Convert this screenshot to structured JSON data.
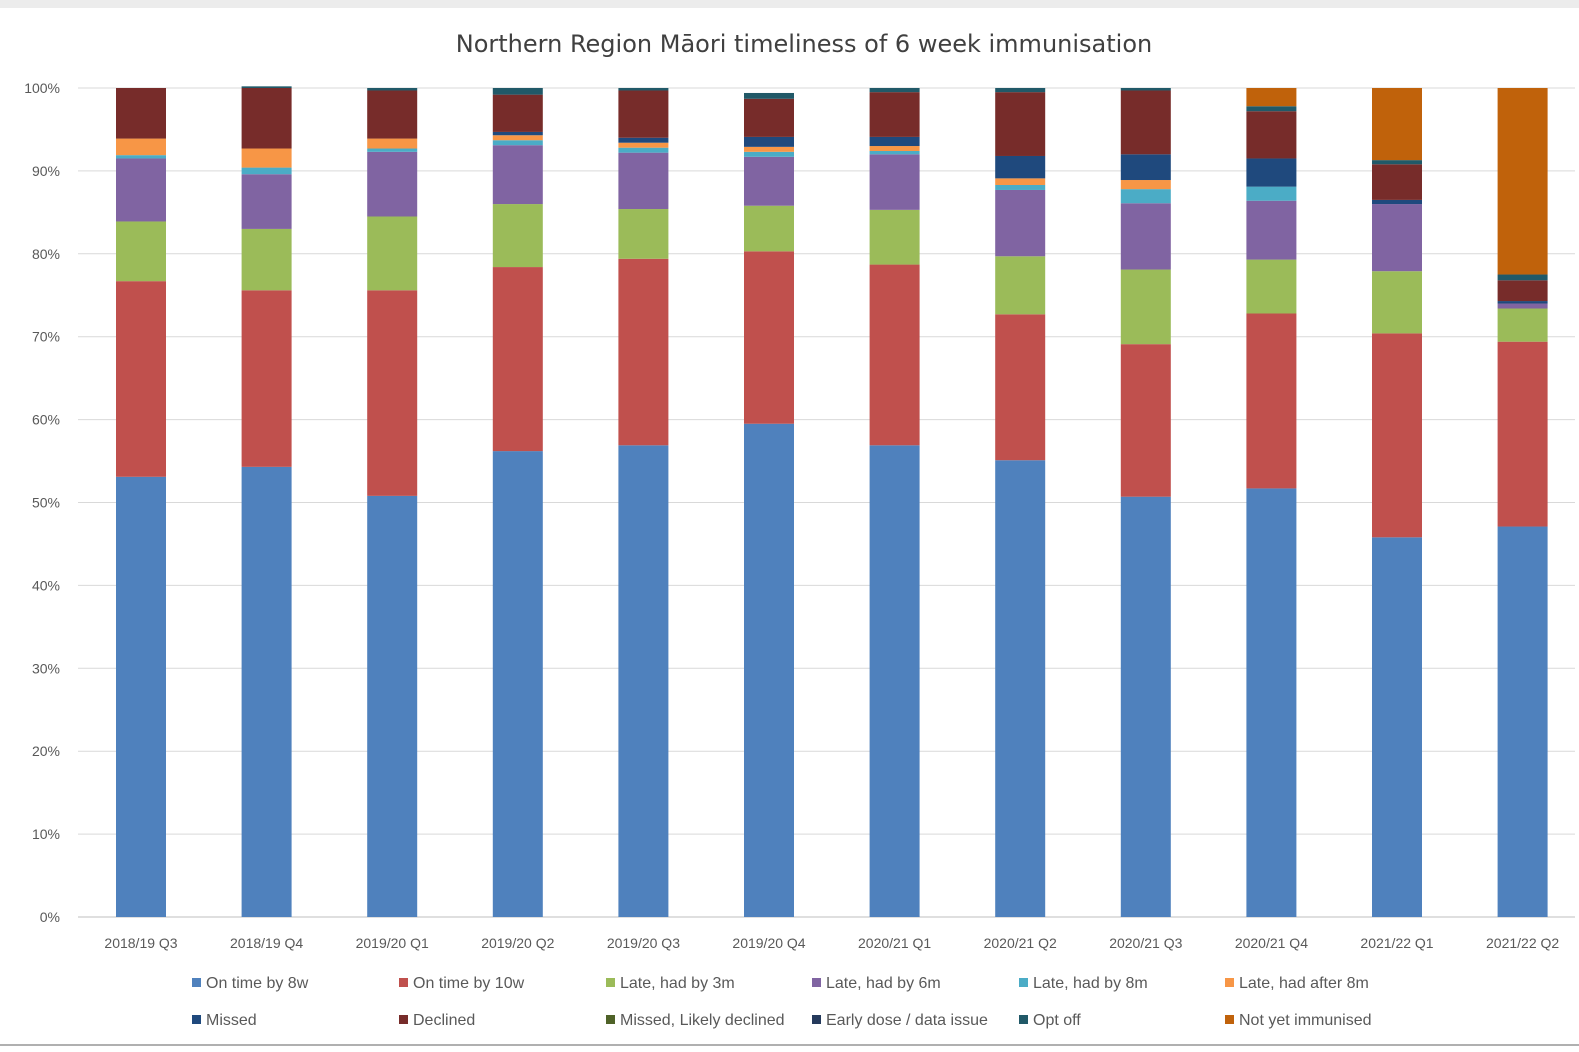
{
  "chart_data": {
    "type": "bar",
    "stacked": true,
    "title": "Northern Region Māori timeliness of 6 week immunisation",
    "xlabel": "",
    "ylabel": "",
    "ylim": [
      0,
      100
    ],
    "y_ticks": [
      "0%",
      "10%",
      "20%",
      "30%",
      "40%",
      "50%",
      "60%",
      "70%",
      "80%",
      "90%",
      "100%"
    ],
    "grid": true,
    "legend_position": "bottom",
    "categories": [
      "2018/19 Q3",
      "2018/19 Q4",
      "2019/20 Q1",
      "2019/20 Q2",
      "2019/20 Q3",
      "2019/20 Q4",
      "2020/21 Q1",
      "2020/21 Q2",
      "2020/21 Q3",
      "2020/21 Q4",
      "2021/22 Q1",
      "2021/22 Q2"
    ],
    "series": [
      {
        "name": "On time by 8w",
        "color": "#4f81bd",
        "values": [
          53.1,
          54.3,
          50.8,
          56.2,
          56.9,
          59.5,
          56.9,
          55.1,
          50.7,
          51.7,
          45.8,
          47.1
        ]
      },
      {
        "name": "On time by 10w",
        "color": "#c0504d",
        "values": [
          23.6,
          21.3,
          24.8,
          22.2,
          22.5,
          20.8,
          21.8,
          17.6,
          18.4,
          21.1,
          24.6,
          22.3
        ]
      },
      {
        "name": "Late, had by 3m",
        "color": "#9bbb59",
        "values": [
          7.2,
          7.4,
          8.9,
          7.6,
          6.0,
          5.5,
          6.6,
          7.0,
          9.0,
          6.5,
          7.5,
          4.0
        ]
      },
      {
        "name": "Late, had by 6m",
        "color": "#8064a2",
        "values": [
          7.6,
          6.6,
          7.8,
          7.1,
          6.8,
          5.9,
          6.7,
          8.0,
          8.0,
          7.1,
          8.1,
          0.6
        ]
      },
      {
        "name": "Late, had by 8m",
        "color": "#4bacc6",
        "values": [
          0.4,
          0.8,
          0.4,
          0.6,
          0.6,
          0.6,
          0.4,
          0.6,
          1.7,
          1.7,
          0.0,
          0.0
        ]
      },
      {
        "name": "Late, had after 8m",
        "color": "#f79646",
        "values": [
          2.0,
          2.3,
          1.2,
          0.6,
          0.6,
          0.6,
          0.6,
          0.8,
          1.1,
          0.0,
          0.0,
          0.0
        ]
      },
      {
        "name": "Missed",
        "color": "#1f497d",
        "values": [
          0.0,
          0.0,
          0.0,
          0.4,
          0.6,
          1.2,
          1.1,
          2.7,
          3.1,
          3.4,
          0.5,
          0.3
        ]
      },
      {
        "name": "Declined",
        "color": "#772c2a",
        "values": [
          6.1,
          7.3,
          5.8,
          4.5,
          5.7,
          4.6,
          5.4,
          7.7,
          7.7,
          5.7,
          4.3,
          2.5
        ]
      },
      {
        "name": "Missed, Likely declined",
        "color": "#4f6228",
        "values": [
          0.0,
          0.0,
          0.0,
          0.0,
          0.0,
          0.0,
          0.0,
          0.0,
          0.0,
          0.0,
          0.0,
          0.0
        ]
      },
      {
        "name": "Early dose / data issue",
        "color": "#253a5c",
        "values": [
          0.0,
          0.0,
          0.0,
          0.0,
          0.0,
          0.0,
          0.0,
          0.0,
          0.0,
          0.0,
          0.0,
          0.0
        ]
      },
      {
        "name": "Opt off",
        "color": "#215968",
        "values": [
          0.0,
          0.2,
          0.3,
          0.8,
          0.3,
          0.7,
          0.5,
          0.5,
          0.3,
          0.6,
          0.5,
          0.7
        ]
      },
      {
        "name": "Not yet immunised",
        "color": "#c0620b",
        "values": [
          0.0,
          0.0,
          0.0,
          0.0,
          0.0,
          0.0,
          0.0,
          0.0,
          0.0,
          2.2,
          8.7,
          22.5
        ]
      }
    ]
  }
}
